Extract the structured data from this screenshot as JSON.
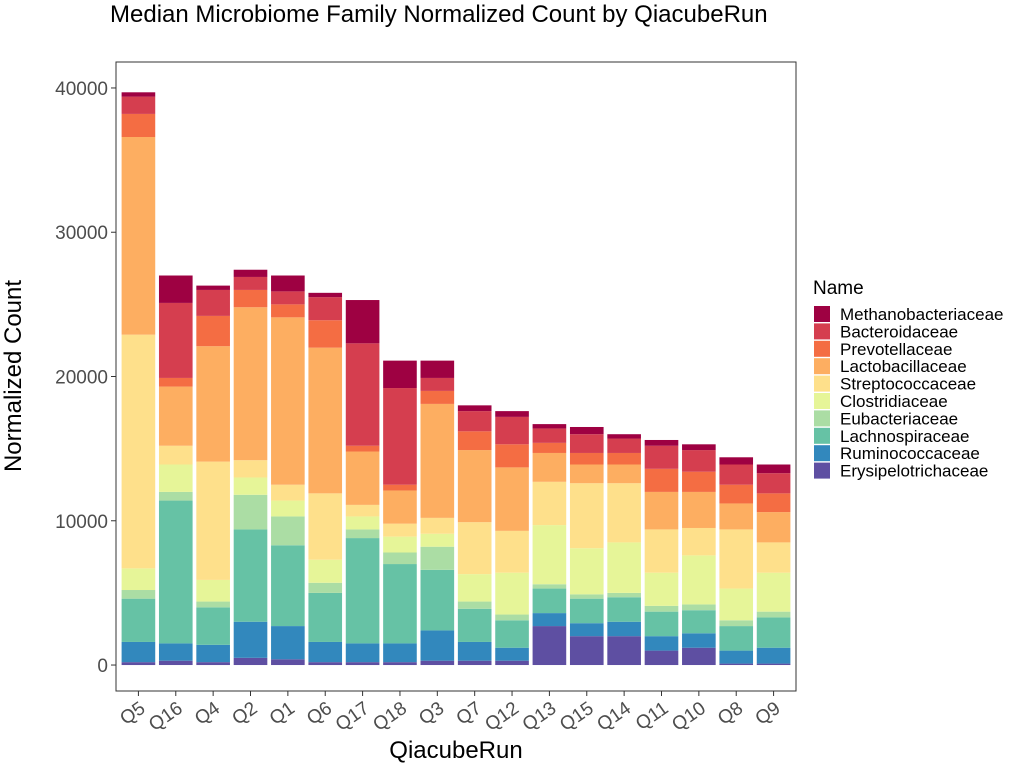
{
  "chart_data": {
    "type": "bar",
    "stacked": true,
    "title": "Median Microbiome Family Normalized Count by QiacubeRun",
    "xlabel": "QiacubeRun",
    "ylabel": "Normalized Count",
    "ylim": [
      -1800,
      41800
    ],
    "yticks": [
      0,
      10000,
      20000,
      30000,
      40000
    ],
    "grid": false,
    "legend_title": "Name",
    "legend_position": "right",
    "categories": [
      "Q5",
      "Q16",
      "Q4",
      "Q2",
      "Q1",
      "Q6",
      "Q17",
      "Q18",
      "Q3",
      "Q7",
      "Q12",
      "Q13",
      "Q15",
      "Q14",
      "Q11",
      "Q10",
      "Q8",
      "Q9"
    ],
    "series": [
      {
        "name": "Methanobacteriaceae",
        "color": "#9E0142",
        "values": [
          300,
          1900,
          300,
          500,
          1100,
          300,
          3000,
          1900,
          1200,
          400,
          400,
          300,
          500,
          300,
          400,
          400,
          500,
          600
        ]
      },
      {
        "name": "Bacteroidaceae",
        "color": "#D53E4F",
        "values": [
          1200,
          5200,
          1800,
          900,
          900,
          1600,
          7100,
          6700,
          900,
          1400,
          1900,
          1000,
          1300,
          1000,
          1600,
          1500,
          1400,
          1400
        ]
      },
      {
        "name": "Prevotellaceae",
        "color": "#F46D43",
        "values": [
          1600,
          600,
          2100,
          1200,
          900,
          1900,
          400,
          400,
          900,
          1300,
          1600,
          700,
          800,
          800,
          1600,
          1400,
          1300,
          1300
        ]
      },
      {
        "name": "Lactobacillaceae",
        "color": "#FDAE61",
        "values": [
          13700,
          4100,
          8000,
          10600,
          11600,
          10100,
          3700,
          2300,
          7900,
          5000,
          4400,
          2000,
          1300,
          1300,
          2600,
          2500,
          1800,
          2100
        ]
      },
      {
        "name": "Streptococcaceae",
        "color": "#FEE08B",
        "values": [
          16200,
          1300,
          8200,
          1200,
          1100,
          4600,
          800,
          900,
          1100,
          3600,
          2900,
          3000,
          4500,
          4100,
          3000,
          1900,
          4100,
          2100
        ]
      },
      {
        "name": "Clostridiaceae",
        "color": "#E6F598",
        "values": [
          1500,
          1900,
          1500,
          1200,
          1100,
          1600,
          900,
          1100,
          900,
          1900,
          2900,
          4100,
          3200,
          3500,
          2300,
          3400,
          2200,
          2700
        ]
      },
      {
        "name": "Eubacteriaceae",
        "color": "#ABDDA4",
        "values": [
          600,
          600,
          400,
          2400,
          2000,
          700,
          600,
          800,
          1600,
          500,
          400,
          300,
          300,
          300,
          400,
          400,
          400,
          400
        ]
      },
      {
        "name": "Lachnospiraceae",
        "color": "#66C2A5",
        "values": [
          3000,
          9900,
          2600,
          6400,
          5600,
          3400,
          7300,
          5500,
          4200,
          2300,
          1900,
          1700,
          1700,
          1700,
          1700,
          1600,
          1700,
          2100
        ]
      },
      {
        "name": "Ruminococcaceae",
        "color": "#3288BD",
        "values": [
          1400,
          1200,
          1200,
          2500,
          2300,
          1400,
          1300,
          1300,
          2100,
          1300,
          900,
          900,
          900,
          1000,
          1000,
          1000,
          900,
          1100
        ]
      },
      {
        "name": "Erysipelotrichaceae",
        "color": "#5E4FA2",
        "values": [
          200,
          300,
          200,
          500,
          400,
          200,
          200,
          200,
          300,
          300,
          300,
          2700,
          2000,
          2000,
          1000,
          1200,
          100,
          100
        ]
      }
    ]
  }
}
